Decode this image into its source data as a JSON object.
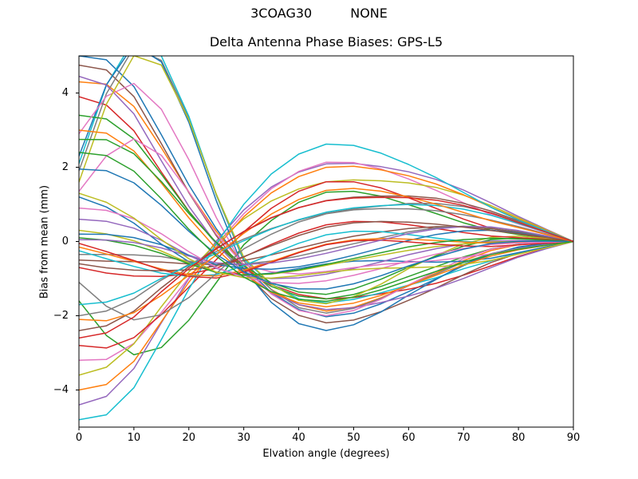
{
  "figure": {
    "run_label": "3COAG30",
    "mode_label": "NONE",
    "title": "Delta Antenna Phase Biases: GPS-L5",
    "xlabel": "Elvation angle (degrees)",
    "ylabel": "Bias from mean (mm)",
    "background_color": "#ffffff",
    "spine_color": "#000000",
    "text_color": "#000000"
  },
  "chart_data": {
    "type": "line",
    "title": "Delta Antenna Phase Biases: GPS-L5",
    "xlabel": "Elvation angle (degrees)",
    "ylabel": "Bias from mean (mm)",
    "xlim": [
      0,
      90
    ],
    "ylim": [
      -5,
      5
    ],
    "grid": false,
    "legend": null,
    "line_width": 1.5,
    "x": [
      0,
      5,
      10,
      15,
      20,
      25,
      30,
      35,
      40,
      45,
      50,
      55,
      60,
      65,
      70,
      75,
      80,
      85,
      90
    ],
    "xticks": {
      "values": [
        0,
        10,
        20,
        30,
        40,
        50,
        60,
        70,
        80,
        90
      ],
      "labels": [
        "0",
        "10",
        "20",
        "30",
        "40",
        "50",
        "60",
        "70",
        "80",
        "90"
      ]
    },
    "yticks": {
      "values": [
        -4,
        -2,
        0,
        2,
        4
      ],
      "labels": [
        "−4",
        "−2",
        "0",
        "2",
        "4"
      ]
    },
    "palette": [
      "#1f77b4",
      "#ff7f0e",
      "#2ca02c",
      "#d62728",
      "#9467bd",
      "#8c564b",
      "#e377c2",
      "#7f7f7f",
      "#bcbd22",
      "#17becf"
    ],
    "series_model": "y(x_k) = a*B1[k] + b*B2[k] + c*B3[k] + d*B4[k] + p*B5[k]; all lines converge to 0 mm at 90 deg; values clipped to ylim",
    "basis": {
      "B1": [
        1.0,
        0.97,
        0.82,
        0.56,
        0.3,
        0.08,
        -0.1,
        -0.23,
        -0.31,
        -0.345,
        -0.33,
        -0.29,
        -0.24,
        -0.185,
        -0.125,
        -0.07,
        -0.03,
        -0.01,
        0.0
      ],
      "B2": [
        0.0,
        0.05,
        0.12,
        0.22,
        0.35,
        0.5,
        0.65,
        0.78,
        0.88,
        0.95,
        0.99,
        1.0,
        0.98,
        0.93,
        0.84,
        0.7,
        0.52,
        0.28,
        0.0
      ],
      "B3": [
        0.0,
        0.3,
        0.55,
        0.7,
        0.6,
        0.35,
        0.0,
        -0.35,
        -0.6,
        -0.7,
        -0.6,
        -0.35,
        0.0,
        0.3,
        0.5,
        0.55,
        0.4,
        0.2,
        0.0
      ],
      "B4": [
        0.0,
        -0.15,
        -0.35,
        -0.6,
        -0.85,
        -1.0,
        -0.95,
        -0.8,
        -0.6,
        -0.4,
        -0.25,
        -0.15,
        -0.08,
        -0.04,
        -0.02,
        -0.01,
        0.0,
        0.0,
        0.0
      ],
      "B5": [
        0.0,
        0.55,
        0.95,
        1.0,
        0.75,
        0.35,
        0.0,
        -0.12,
        -0.2,
        -0.22,
        -0.2,
        -0.16,
        -0.11,
        -0.07,
        -0.03,
        -0.01,
        0.0,
        0.0,
        0.0
      ]
    },
    "series": [
      {
        "name": "line-01",
        "color_index": 0,
        "coeffs": [
          5.0,
          -0.15,
          0.2,
          0.05,
          0
        ]
      },
      {
        "name": "line-02",
        "color_index": 1,
        "coeffs": [
          4.3,
          -0.15,
          0.3,
          0.1,
          0
        ]
      },
      {
        "name": "line-03",
        "color_index": 2,
        "coeffs": [
          -1.6,
          0.5,
          -0.3,
          0.6,
          -1.5
        ]
      },
      {
        "name": "line-04",
        "color_index": 3,
        "coeffs": [
          3.9,
          -0.35,
          -0.25,
          0.1,
          0
        ]
      },
      {
        "name": "line-05",
        "color_index": 4,
        "coeffs": [
          -4.4,
          0.85,
          0.25,
          0.15,
          0
        ]
      },
      {
        "name": "line-06",
        "color_index": 5,
        "coeffs": [
          4.75,
          -0.45,
          0.15,
          0.05,
          0
        ]
      },
      {
        "name": "line-07",
        "color_index": 6,
        "coeffs": [
          -3.2,
          0.95,
          -0.3,
          0.2,
          0
        ]
      },
      {
        "name": "line-08",
        "color_index": 7,
        "coeffs": [
          1.9,
          -0.3,
          0.1,
          0.15,
          3.9
        ]
      },
      {
        "name": "line-09",
        "color_index": 8,
        "coeffs": [
          -3.6,
          0.75,
          0.35,
          0.25,
          0
        ]
      },
      {
        "name": "line-10",
        "color_index": 9,
        "coeffs": [
          2.1,
          -0.2,
          -0.35,
          0.15,
          4.2
        ]
      },
      {
        "name": "line-11",
        "color_index": 0,
        "coeffs": [
          2.3,
          -0.5,
          0.4,
          0.2,
          3.5
        ]
      },
      {
        "name": "line-12",
        "color_index": 1,
        "coeffs": [
          -4.0,
          0.85,
          0.1,
          0.3,
          0
        ]
      },
      {
        "name": "line-13",
        "color_index": 2,
        "coeffs": [
          3.4,
          -0.1,
          0.2,
          0.35,
          0
        ]
      },
      {
        "name": "line-14",
        "color_index": 3,
        "coeffs": [
          -2.8,
          0.55,
          -0.4,
          0.4,
          0
        ]
      },
      {
        "name": "line-15",
        "color_index": 4,
        "coeffs": [
          4.45,
          -0.4,
          -0.2,
          0.15,
          0
        ]
      },
      {
        "name": "line-16",
        "color_index": 5,
        "coeffs": [
          -2.4,
          0.7,
          0.3,
          0.45,
          0
        ]
      },
      {
        "name": "line-17",
        "color_index": 6,
        "coeffs": [
          2.9,
          -0.25,
          0.35,
          0.25,
          1.9
        ]
      },
      {
        "name": "line-18",
        "color_index": 7,
        "coeffs": [
          -2.0,
          0.6,
          0.4,
          0.55,
          0
        ]
      },
      {
        "name": "line-19",
        "color_index": 8,
        "coeffs": [
          1.6,
          0.1,
          0.35,
          0.35,
          3.8
        ]
      },
      {
        "name": "line-20",
        "color_index": 9,
        "coeffs": [
          -4.8,
          0.95,
          -0.15,
          0.1,
          0
        ]
      },
      {
        "name": "line-21",
        "color_index": 0,
        "coeffs": [
          1.2,
          -0.2,
          -0.4,
          0.7,
          0
        ]
      },
      {
        "name": "line-22",
        "color_index": 1,
        "coeffs": [
          3.0,
          -0.45,
          0.25,
          0.3,
          0
        ]
      },
      {
        "name": "line-23",
        "color_index": 2,
        "coeffs": [
          2.75,
          0.0,
          0.45,
          0.4,
          0
        ]
      },
      {
        "name": "line-24",
        "color_index": 3,
        "coeffs": [
          -0.7,
          0.35,
          -0.25,
          0.75,
          0
        ]
      },
      {
        "name": "line-25",
        "color_index": 4,
        "coeffs": [
          0.6,
          -0.15,
          0.3,
          0.8,
          0
        ]
      },
      {
        "name": "line-26",
        "color_index": 5,
        "coeffs": [
          -0.5,
          0.3,
          0.2,
          0.8,
          0
        ]
      },
      {
        "name": "line-27",
        "color_index": 6,
        "coeffs": [
          1.35,
          0.05,
          -0.45,
          0.55,
          2.2
        ]
      },
      {
        "name": "line-28",
        "color_index": 7,
        "coeffs": [
          -0.35,
          0.25,
          0.35,
          0.85,
          0
        ]
      },
      {
        "name": "line-29",
        "color_index": 8,
        "coeffs": [
          0.3,
          -0.1,
          0.15,
          0.85,
          0
        ]
      },
      {
        "name": "line-30",
        "color_index": 9,
        "coeffs": [
          -0.25,
          0.2,
          -0.35,
          0.85,
          0
        ]
      },
      {
        "name": "line-31",
        "color_index": 0,
        "coeffs": [
          0.2,
          0.15,
          0.4,
          0.85,
          0
        ]
      },
      {
        "name": "line-32",
        "color_index": 1,
        "coeffs": [
          -0.15,
          0.1,
          -0.2,
          0.9,
          0
        ]
      },
      {
        "name": "line-33",
        "color_index": 2,
        "coeffs": [
          0.1,
          -0.05,
          0.25,
          0.9,
          0
        ]
      },
      {
        "name": "line-34",
        "color_index": 3,
        "coeffs": [
          -0.05,
          0.05,
          -0.3,
          0.9,
          0
        ]
      },
      {
        "name": "line-35",
        "color_index": 4,
        "coeffs": [
          0.05,
          0.3,
          0.35,
          0.85,
          0
        ]
      },
      {
        "name": "line-36",
        "color_index": 5,
        "coeffs": [
          -0.6,
          0.45,
          -0.1,
          0.8,
          0
        ]
      },
      {
        "name": "line-37",
        "color_index": 6,
        "coeffs": [
          0.9,
          -0.25,
          0.3,
          0.75,
          0
        ]
      },
      {
        "name": "line-38",
        "color_index": 7,
        "coeffs": [
          -1.1,
          0.55,
          0.2,
          0.7,
          -1.2
        ]
      },
      {
        "name": "line-39",
        "color_index": 8,
        "coeffs": [
          1.3,
          -0.35,
          -0.3,
          0.65,
          0
        ]
      },
      {
        "name": "line-40",
        "color_index": 9,
        "coeffs": [
          -1.7,
          0.65,
          0.25,
          0.6,
          0
        ]
      },
      {
        "name": "line-41",
        "color_index": 0,
        "coeffs": [
          1.95,
          -0.15,
          0.35,
          0.55,
          0
        ]
      },
      {
        "name": "line-42",
        "color_index": 1,
        "coeffs": [
          -2.1,
          0.75,
          -0.2,
          0.5,
          0
        ]
      },
      {
        "name": "line-43",
        "color_index": 2,
        "coeffs": [
          2.4,
          -0.45,
          0.25,
          0.45,
          0
        ]
      },
      {
        "name": "line-44",
        "color_index": 3,
        "coeffs": [
          -2.6,
          0.6,
          0.3,
          0.4,
          0
        ]
      }
    ]
  }
}
